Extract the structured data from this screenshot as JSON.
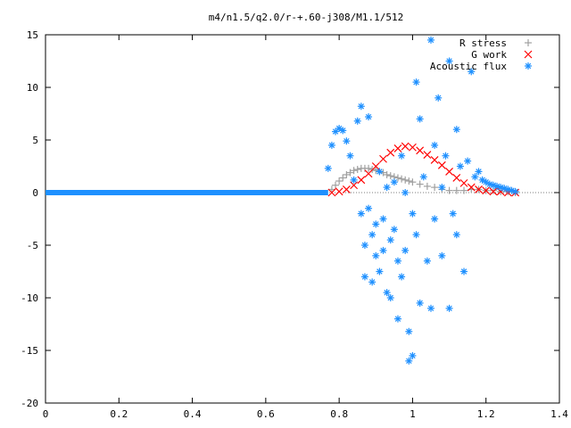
{
  "chart_data": {
    "type": "scatter",
    "title": "m4/n1.5/q2.0/r-+.60-j308/M1.1/512",
    "xlabel": "",
    "ylabel": "",
    "xlim": [
      0,
      1.4
    ],
    "ylim": [
      -20,
      15
    ],
    "x_ticks": [
      0,
      0.2,
      0.4,
      0.6,
      0.8,
      1,
      1.2,
      1.4
    ],
    "y_ticks": [
      15,
      10,
      5,
      0,
      -5,
      -10,
      -15,
      -20
    ],
    "x_tick_labels": [
      "0",
      "0.2",
      "0.4",
      "0.6",
      "0.8",
      "1",
      "1.2",
      "1.4"
    ],
    "y_tick_labels": [
      "15",
      "10",
      "5",
      "0",
      "-5",
      "-10",
      "-15",
      "-20"
    ],
    "grid": false,
    "legend_position": "top-right",
    "series": [
      {
        "name": "R stress",
        "marker": "+",
        "color": "#a0a0a0",
        "x": [
          0.78,
          0.79,
          0.8,
          0.81,
          0.82,
          0.83,
          0.84,
          0.85,
          0.86,
          0.87,
          0.88,
          0.89,
          0.9,
          0.91,
          0.92,
          0.93,
          0.94,
          0.95,
          0.96,
          0.97,
          0.98,
          0.99,
          1.0,
          1.02,
          1.04,
          1.06,
          1.08,
          1.1,
          1.12,
          1.14,
          1.16,
          1.18,
          1.2,
          1.22,
          1.24,
          1.26,
          1.28
        ],
        "y": [
          0.3,
          0.7,
          1.1,
          1.4,
          1.7,
          1.9,
          2.1,
          2.2,
          2.3,
          2.3,
          2.3,
          2.2,
          2.1,
          2.0,
          1.9,
          1.7,
          1.6,
          1.5,
          1.4,
          1.3,
          1.2,
          1.1,
          1.0,
          0.8,
          0.6,
          0.5,
          0.3,
          0.2,
          0.2,
          0.2,
          0.3,
          0.3,
          0.2,
          0.2,
          0.1,
          0.1,
          0.0
        ]
      },
      {
        "name": "G work",
        "marker": "x",
        "color": "#ff0000",
        "x": [
          0.78,
          0.8,
          0.82,
          0.84,
          0.86,
          0.88,
          0.9,
          0.92,
          0.94,
          0.96,
          0.98,
          1.0,
          1.02,
          1.04,
          1.06,
          1.08,
          1.1,
          1.12,
          1.14,
          1.16,
          1.18,
          1.2,
          1.22,
          1.24,
          1.26,
          1.28
        ],
        "y": [
          0.0,
          0.1,
          0.3,
          0.7,
          1.2,
          1.8,
          2.5,
          3.2,
          3.8,
          4.2,
          4.4,
          4.3,
          4.0,
          3.6,
          3.1,
          2.6,
          2.0,
          1.4,
          0.9,
          0.5,
          0.3,
          0.2,
          0.1,
          0.1,
          0.0,
          0.0
        ]
      },
      {
        "name": "Acoustic flux",
        "marker": "*",
        "color": "#1e90ff",
        "x": [
          0.77,
          0.78,
          0.79,
          0.8,
          0.81,
          0.82,
          0.83,
          0.84,
          0.85,
          0.86,
          0.86,
          0.87,
          0.87,
          0.88,
          0.88,
          0.89,
          0.89,
          0.9,
          0.9,
          0.91,
          0.91,
          0.92,
          0.92,
          0.93,
          0.93,
          0.94,
          0.94,
          0.95,
          0.95,
          0.96,
          0.96,
          0.97,
          0.97,
          0.98,
          0.98,
          0.99,
          0.99,
          1.0,
          1.0,
          1.01,
          1.01,
          1.02,
          1.02,
          1.03,
          1.04,
          1.05,
          1.05,
          1.06,
          1.06,
          1.07,
          1.08,
          1.08,
          1.09,
          1.1,
          1.1,
          1.11,
          1.12,
          1.12,
          1.13,
          1.14,
          1.15,
          1.16,
          1.17,
          1.18,
          1.19,
          1.2,
          1.21,
          1.22,
          1.23,
          1.24,
          1.25,
          1.26,
          1.27,
          1.28
        ],
        "y": [
          2.3,
          4.5,
          5.8,
          6.1,
          5.9,
          4.9,
          3.5,
          1.2,
          6.8,
          8.2,
          -2.0,
          -5.0,
          -8.0,
          7.2,
          -1.5,
          -4.0,
          -8.5,
          -3.0,
          -6.0,
          2.0,
          -7.5,
          -2.5,
          -5.5,
          -9.5,
          0.5,
          -4.5,
          -10.0,
          1.0,
          -3.5,
          -6.5,
          -12.0,
          3.5,
          -8.0,
          0.0,
          -5.5,
          -16.0,
          -13.2,
          -15.5,
          -2.0,
          10.5,
          -4.0,
          7.0,
          -10.5,
          1.5,
          -6.5,
          14.5,
          -11.0,
          4.5,
          -2.5,
          9.0,
          -6.0,
          0.5,
          3.5,
          12.5,
          -11.0,
          -2.0,
          6.0,
          -4.0,
          2.5,
          -7.5,
          3.0,
          11.5,
          1.5,
          2.0,
          1.2,
          1.0,
          0.8,
          0.7,
          0.6,
          0.5,
          0.4,
          0.3,
          0.2,
          0.1
        ],
        "baseline_x_range": [
          0,
          0.77
        ],
        "baseline_y": 0
      }
    ]
  }
}
